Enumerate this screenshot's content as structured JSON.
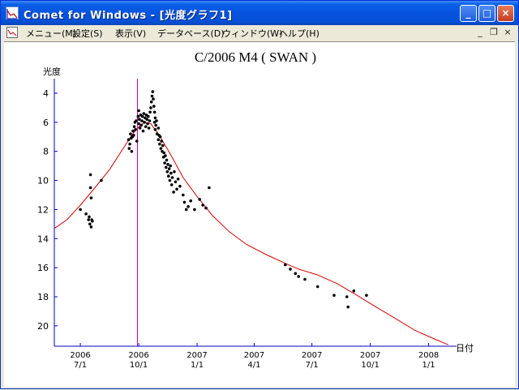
{
  "window": {
    "title": "Comet for Windows - [光度グラフ1]",
    "controls": {
      "minimize": "_",
      "maximize": "□",
      "close": "×"
    }
  },
  "menubar": {
    "items": [
      "メニュー(M)",
      "設定(S)",
      "表示(V)",
      "データベース(D)",
      "ウィンドウ(W)",
      "ヘルプ(H)"
    ],
    "mdi_controls": {
      "minimize": "_",
      "restore": "❐",
      "close": "×"
    }
  },
  "colors": {
    "model_curve": "#D40000",
    "perihelion_line": "#C000C0",
    "axis": "#0000C0",
    "points": "#000000"
  },
  "chart_data": {
    "type": "scatter",
    "title": "C/2006 M4 ( SWAN )",
    "ylabel": "光度",
    "xlabel": "日付",
    "y_inverted": true,
    "ylim": [
      3.0,
      21.4
    ],
    "yticks": [
      4,
      6,
      8,
      10,
      12,
      14,
      16,
      18,
      20
    ],
    "x_range": [
      "2006-05-21",
      "2008-02-14"
    ],
    "xticks": [
      {
        "date": "2006-07-01",
        "year": "2006",
        "md": "7/1"
      },
      {
        "date": "2006-10-01",
        "year": "2006",
        "md": "10/1"
      },
      {
        "date": "2007-01-01",
        "year": "2007",
        "md": "1/1"
      },
      {
        "date": "2007-04-01",
        "year": "2007",
        "md": "4/1"
      },
      {
        "date": "2007-07-01",
        "year": "2007",
        "md": "7/1"
      },
      {
        "date": "2007-10-01",
        "year": "2007",
        "md": "10/1"
      },
      {
        "date": "2008-01-01",
        "year": "2008",
        "md": "1/1"
      }
    ],
    "perihelion_date": "2006-09-29",
    "model_curve": [
      [
        "2006-05-21",
        13.3
      ],
      [
        "2006-06-10",
        12.7
      ],
      [
        "2006-07-01",
        11.7
      ],
      [
        "2006-07-24",
        10.5
      ],
      [
        "2006-08-17",
        9.2
      ],
      [
        "2006-09-05",
        7.9
      ],
      [
        "2006-09-20",
        6.9
      ],
      [
        "2006-09-29",
        6.4
      ],
      [
        "2006-10-10",
        6.0
      ],
      [
        "2006-10-20",
        6.1
      ],
      [
        "2006-11-01",
        6.8
      ],
      [
        "2006-11-20",
        8.2
      ],
      [
        "2006-12-10",
        9.8
      ],
      [
        "2007-01-01",
        11.1
      ],
      [
        "2007-01-25",
        12.4
      ],
      [
        "2007-02-20",
        13.5
      ],
      [
        "2007-03-20",
        14.4
      ],
      [
        "2007-04-20",
        15.1
      ],
      [
        "2007-05-20",
        15.7
      ],
      [
        "2007-06-10",
        16.1
      ],
      [
        "2007-07-10",
        16.5
      ],
      [
        "2007-08-10",
        17.1
      ],
      [
        "2007-09-10",
        17.9
      ],
      [
        "2007-10-10",
        18.7
      ],
      [
        "2007-11-10",
        19.5
      ],
      [
        "2007-12-10",
        20.3
      ],
      [
        "2008-01-10",
        20.9
      ],
      [
        "2008-02-01",
        21.3
      ]
    ],
    "observations": [
      [
        "2006-07-01",
        12.0
      ],
      [
        "2006-07-10",
        12.3
      ],
      [
        "2006-07-14",
        12.7
      ],
      [
        "2006-07-16",
        13.0
      ],
      [
        "2006-07-18",
        13.2
      ],
      [
        "2006-07-20",
        12.8
      ],
      [
        "2006-07-15",
        12.5
      ],
      [
        "2006-07-17",
        9.6
      ],
      [
        "2006-07-17",
        10.5
      ],
      [
        "2006-07-18",
        11.2
      ],
      [
        "2006-07-19",
        12.7
      ],
      [
        "2006-08-03",
        10.0
      ],
      [
        "2006-09-15",
        7.2
      ],
      [
        "2006-09-16",
        7.8
      ],
      [
        "2006-09-17",
        7.5
      ],
      [
        "2006-09-18",
        6.8
      ],
      [
        "2006-09-19",
        7.1
      ],
      [
        "2006-09-20",
        8.0
      ],
      [
        "2006-09-21",
        7.0
      ],
      [
        "2006-09-22",
        6.6
      ],
      [
        "2006-09-23",
        6.9
      ],
      [
        "2006-09-24",
        6.3
      ],
      [
        "2006-09-25",
        6.0
      ],
      [
        "2006-09-26",
        6.5
      ],
      [
        "2006-09-27",
        5.9
      ],
      [
        "2006-09-28",
        7.3
      ],
      [
        "2006-09-30",
        5.6
      ],
      [
        "2006-10-01",
        5.2
      ],
      [
        "2006-10-01",
        6.1
      ],
      [
        "2006-10-02",
        5.8
      ],
      [
        "2006-10-03",
        6.4
      ],
      [
        "2006-10-04",
        5.5
      ],
      [
        "2006-10-05",
        6.2
      ],
      [
        "2006-10-06",
        5.9
      ],
      [
        "2006-10-07",
        5.6
      ],
      [
        "2006-10-08",
        6.6
      ],
      [
        "2006-10-09",
        5.4
      ],
      [
        "2006-10-10",
        6.0
      ],
      [
        "2006-10-11",
        5.7
      ],
      [
        "2006-10-12",
        6.3
      ],
      [
        "2006-10-13",
        5.5
      ],
      [
        "2006-10-14",
        5.8
      ],
      [
        "2006-10-15",
        6.1
      ],
      [
        "2006-10-16",
        5.6
      ],
      [
        "2006-10-17",
        6.4
      ],
      [
        "2006-10-18",
        5.9
      ],
      [
        "2006-10-19",
        5.3
      ],
      [
        "2006-10-20",
        5.0
      ],
      [
        "2006-10-21",
        4.6
      ],
      [
        "2006-10-22",
        4.2
      ],
      [
        "2006-10-23",
        3.9
      ],
      [
        "2006-10-24",
        4.4
      ],
      [
        "2006-10-25",
        4.9
      ],
      [
        "2006-10-26",
        5.3
      ],
      [
        "2006-10-26",
        6.0
      ],
      [
        "2006-10-27",
        5.7
      ],
      [
        "2006-10-27",
        6.5
      ],
      [
        "2006-10-28",
        6.2
      ],
      [
        "2006-10-29",
        5.9
      ],
      [
        "2006-10-30",
        6.8
      ],
      [
        "2006-11-01",
        6.4
      ],
      [
        "2006-11-01",
        7.2
      ],
      [
        "2006-11-02",
        6.9
      ],
      [
        "2006-11-03",
        7.5
      ],
      [
        "2006-11-04",
        7.0
      ],
      [
        "2006-11-05",
        7.8
      ],
      [
        "2006-11-06",
        7.3
      ],
      [
        "2006-11-07",
        8.0
      ],
      [
        "2006-11-08",
        7.6
      ],
      [
        "2006-11-09",
        8.4
      ],
      [
        "2006-11-10",
        8.1
      ],
      [
        "2006-11-11",
        8.8
      ],
      [
        "2006-11-12",
        8.3
      ],
      [
        "2006-11-13",
        9.1
      ],
      [
        "2006-11-14",
        8.6
      ],
      [
        "2006-11-15",
        9.4
      ],
      [
        "2006-11-16",
        8.9
      ],
      [
        "2006-11-17",
        9.7
      ],
      [
        "2006-11-18",
        9.2
      ],
      [
        "2006-11-19",
        10.0
      ],
      [
        "2006-11-20",
        9.0
      ],
      [
        "2006-11-21",
        9.5
      ],
      [
        "2006-11-22",
        10.3
      ],
      [
        "2006-11-23",
        9.8
      ],
      [
        "2006-11-25",
        10.8
      ],
      [
        "2006-11-26",
        9.4
      ],
      [
        "2006-11-28",
        10.1
      ],
      [
        "2006-11-30",
        10.6
      ],
      [
        "2006-12-02",
        9.9
      ],
      [
        "2006-12-05",
        10.4
      ],
      [
        "2006-12-10",
        11.0
      ],
      [
        "2006-12-12",
        11.5
      ],
      [
        "2006-12-15",
        12.0
      ],
      [
        "2006-12-18",
        11.8
      ],
      [
        "2006-12-22",
        11.4
      ],
      [
        "2006-12-28",
        12.0
      ],
      [
        "2007-01-05",
        11.3
      ],
      [
        "2007-01-10",
        11.7
      ],
      [
        "2007-01-15",
        11.9
      ],
      [
        "2007-01-20",
        10.5
      ],
      [
        "2007-05-20",
        15.8
      ],
      [
        "2007-05-28",
        16.1
      ],
      [
        "2007-06-05",
        16.4
      ],
      [
        "2007-06-10",
        16.6
      ],
      [
        "2007-06-20",
        16.8
      ],
      [
        "2007-07-10",
        17.3
      ],
      [
        "2007-08-05",
        17.9
      ],
      [
        "2007-08-25",
        18.0
      ],
      [
        "2007-08-27",
        18.7
      ],
      [
        "2007-09-05",
        17.6
      ],
      [
        "2007-09-25",
        17.9
      ]
    ]
  }
}
